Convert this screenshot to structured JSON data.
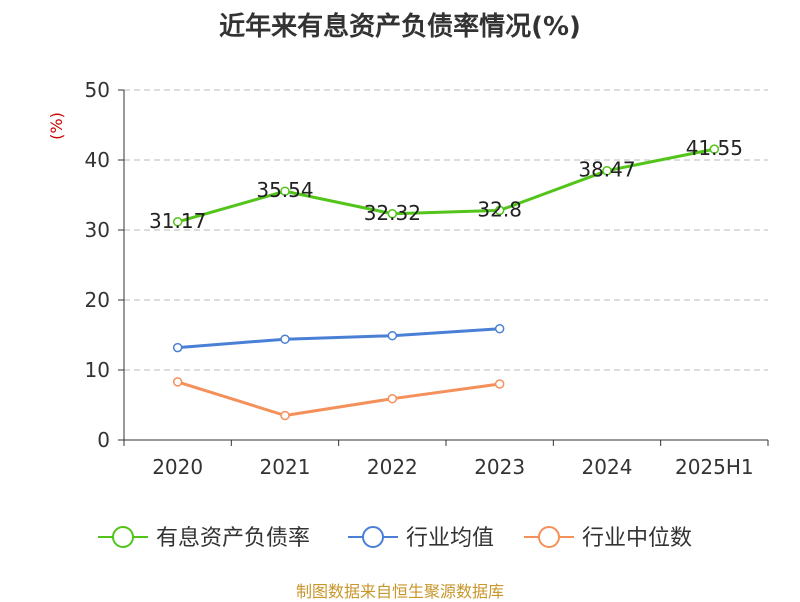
{
  "chart_data": {
    "type": "line",
    "title": "近年来有息资产负债率情况(%)",
    "ylabel": "(%)",
    "xlabel": "",
    "categories": [
      "2020",
      "2021",
      "2022",
      "2023",
      "2024",
      "2025H1"
    ],
    "ylim": [
      0,
      50
    ],
    "yticks": [
      0,
      10,
      20,
      30,
      40,
      50
    ],
    "grid": true,
    "legend_position": "bottom",
    "series": [
      {
        "name": "有息资产负债率",
        "color": "#52c41a",
        "values": [
          31.17,
          35.54,
          32.32,
          32.8,
          38.47,
          41.55
        ],
        "labels": [
          "31.17",
          "35.54",
          "32.32",
          "32.8",
          "38.47",
          "41.55"
        ]
      },
      {
        "name": "行业均值",
        "color": "#4a7fd6",
        "values": [
          13.2,
          14.4,
          14.9,
          15.9,
          null,
          null
        ]
      },
      {
        "name": "行业中位数",
        "color": "#f4905a",
        "values": [
          8.3,
          3.5,
          5.9,
          8.0,
          null,
          null
        ]
      }
    ]
  },
  "footer": "制图数据来自恒生聚源数据库"
}
